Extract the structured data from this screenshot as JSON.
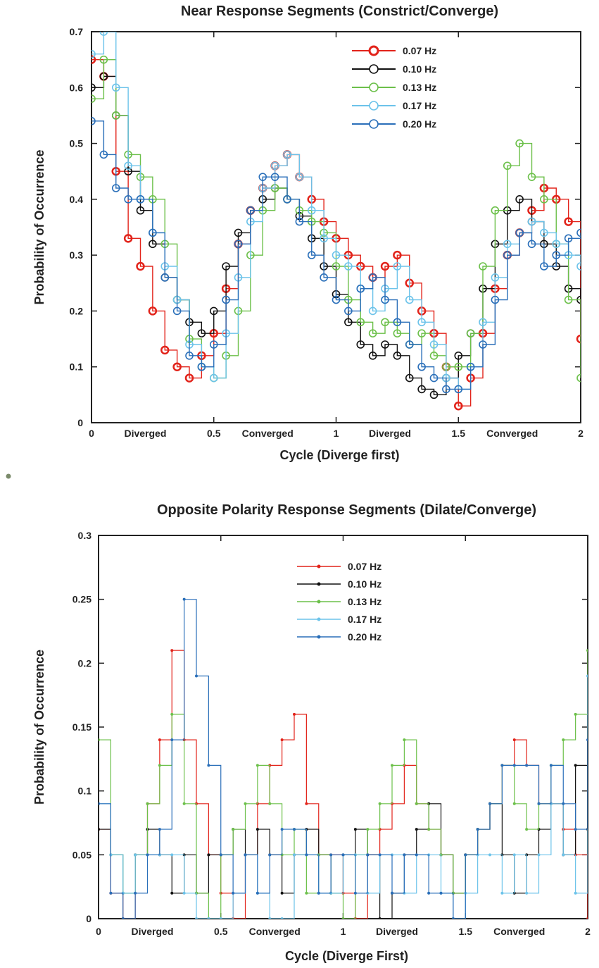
{
  "chart_data": [
    {
      "type": "scatter",
      "title": "Near Response Segments (Constrict/Converge)",
      "xlabel": "Cycle (Diverge first)",
      "ylabel": "Probability of Occurrence",
      "xlim": [
        0,
        2
      ],
      "ylim": [
        0,
        0.7
      ],
      "yticks": [
        "0",
        "0.1",
        "0.2",
        "0.3",
        "0.4",
        "0.5",
        "0.6",
        "0.7"
      ],
      "xticks": [
        {
          "v": 0,
          "label": "0"
        },
        {
          "v": 0.5,
          "label": "0.5"
        },
        {
          "v": 1,
          "label": "1"
        },
        {
          "v": 1.5,
          "label": "1.5"
        },
        {
          "v": 2,
          "label": "2"
        }
      ],
      "phase_labels": [
        {
          "v": 0.22,
          "label": "Diverged"
        },
        {
          "v": 0.72,
          "label": "Converged"
        },
        {
          "v": 1.22,
          "label": "Diverged"
        },
        {
          "v": 1.72,
          "label": "Converged"
        }
      ],
      "legend_position": "top-right",
      "marker": "open-circle",
      "series": [
        {
          "name": "0.07 Hz",
          "color": "#e2231a",
          "x": [
            0,
            0.05,
            0.1,
            0.15,
            0.2,
            0.25,
            0.3,
            0.35,
            0.4,
            0.45,
            0.5,
            0.55,
            0.6,
            0.65,
            0.7,
            0.75,
            0.8,
            0.85,
            0.9,
            0.95,
            1,
            1.05,
            1.1,
            1.15,
            1.2,
            1.25,
            1.3,
            1.35,
            1.4,
            1.45,
            1.5,
            1.55,
            1.6,
            1.65,
            1.7,
            1.75,
            1.8,
            1.85,
            1.9,
            1.95,
            2
          ],
          "y": [
            0.65,
            0.62,
            0.45,
            0.33,
            0.28,
            0.2,
            0.13,
            0.1,
            0.08,
            0.12,
            0.16,
            0.24,
            0.32,
            0.38,
            0.42,
            0.46,
            0.48,
            0.44,
            0.4,
            0.36,
            0.33,
            0.3,
            0.28,
            0.26,
            0.28,
            0.3,
            0.25,
            0.2,
            0.16,
            0.1,
            0.03,
            0.08,
            0.16,
            0.24,
            0.3,
            0.34,
            0.38,
            0.42,
            0.4,
            0.36,
            0.15
          ]
        },
        {
          "name": "0.10 Hz",
          "color": "#111111",
          "x": [
            0,
            0.05,
            0.1,
            0.15,
            0.2,
            0.25,
            0.3,
            0.35,
            0.4,
            0.45,
            0.5,
            0.55,
            0.6,
            0.65,
            0.7,
            0.75,
            0.8,
            0.85,
            0.9,
            0.95,
            1,
            1.05,
            1.1,
            1.15,
            1.2,
            1.25,
            1.3,
            1.35,
            1.4,
            1.45,
            1.5,
            1.55,
            1.6,
            1.65,
            1.7,
            1.75,
            1.8,
            1.85,
            1.9,
            1.95,
            2
          ],
          "y": [
            0.6,
            0.62,
            0.55,
            0.45,
            0.38,
            0.32,
            0.26,
            0.22,
            0.18,
            0.16,
            0.2,
            0.28,
            0.34,
            0.38,
            0.4,
            0.42,
            0.4,
            0.37,
            0.33,
            0.28,
            0.23,
            0.18,
            0.14,
            0.12,
            0.14,
            0.12,
            0.08,
            0.06,
            0.05,
            0.08,
            0.12,
            0.16,
            0.24,
            0.32,
            0.38,
            0.4,
            0.36,
            0.32,
            0.28,
            0.24,
            0.22
          ]
        },
        {
          "name": "0.13 Hz",
          "color": "#6cc04a",
          "x": [
            0,
            0.05,
            0.1,
            0.15,
            0.2,
            0.25,
            0.3,
            0.35,
            0.4,
            0.45,
            0.5,
            0.55,
            0.6,
            0.65,
            0.7,
            0.75,
            0.8,
            0.85,
            0.9,
            0.95,
            1,
            1.05,
            1.1,
            1.15,
            1.2,
            1.25,
            1.3,
            1.35,
            1.4,
            1.45,
            1.5,
            1.55,
            1.6,
            1.65,
            1.7,
            1.75,
            1.8,
            1.85,
            1.9,
            1.95,
            2
          ],
          "y": [
            0.58,
            0.65,
            0.55,
            0.48,
            0.44,
            0.4,
            0.32,
            0.22,
            0.15,
            0.1,
            0.08,
            0.12,
            0.2,
            0.3,
            0.38,
            0.42,
            0.4,
            0.38,
            0.36,
            0.34,
            0.28,
            0.22,
            0.18,
            0.16,
            0.18,
            0.16,
            0.14,
            0.16,
            0.12,
            0.1,
            0.1,
            0.16,
            0.28,
            0.38,
            0.46,
            0.5,
            0.44,
            0.4,
            0.32,
            0.22,
            0.08
          ]
        },
        {
          "name": "0.17 Hz",
          "color": "#6cc3ea",
          "x": [
            0,
            0.05,
            0.1,
            0.15,
            0.2,
            0.25,
            0.3,
            0.35,
            0.4,
            0.45,
            0.5,
            0.55,
            0.6,
            0.65,
            0.7,
            0.75,
            0.8,
            0.85,
            0.9,
            0.95,
            1,
            1.05,
            1.1,
            1.15,
            1.2,
            1.25,
            1.3,
            1.35,
            1.4,
            1.45,
            1.5,
            1.55,
            1.6,
            1.65,
            1.7,
            1.75,
            1.8,
            1.85,
            1.9,
            1.95,
            2
          ],
          "y": [
            0.66,
            0.7,
            0.6,
            0.46,
            0.4,
            0.34,
            0.28,
            0.22,
            0.14,
            0.1,
            0.08,
            0.16,
            0.26,
            0.36,
            0.42,
            0.46,
            0.48,
            0.44,
            0.38,
            0.33,
            0.3,
            0.28,
            0.24,
            0.2,
            0.24,
            0.28,
            0.22,
            0.18,
            0.14,
            0.08,
            0.06,
            0.1,
            0.18,
            0.26,
            0.32,
            0.34,
            0.36,
            0.34,
            0.32,
            0.3,
            0.28
          ]
        },
        {
          "name": "0.20 Hz",
          "color": "#2a6fb9",
          "x": [
            0,
            0.05,
            0.1,
            0.15,
            0.2,
            0.25,
            0.3,
            0.35,
            0.4,
            0.45,
            0.5,
            0.55,
            0.6,
            0.65,
            0.7,
            0.75,
            0.8,
            0.85,
            0.9,
            0.95,
            1,
            1.05,
            1.1,
            1.15,
            1.2,
            1.25,
            1.3,
            1.35,
            1.4,
            1.45,
            1.5,
            1.55,
            1.6,
            1.65,
            1.7,
            1.75,
            1.8,
            1.85,
            1.9,
            1.95,
            2
          ],
          "y": [
            0.54,
            0.48,
            0.42,
            0.4,
            0.4,
            0.34,
            0.26,
            0.2,
            0.12,
            0.1,
            0.14,
            0.22,
            0.32,
            0.38,
            0.44,
            0.44,
            0.4,
            0.36,
            0.3,
            0.26,
            0.22,
            0.2,
            0.24,
            0.26,
            0.22,
            0.18,
            0.14,
            0.1,
            0.08,
            0.06,
            0.06,
            0.1,
            0.14,
            0.22,
            0.3,
            0.34,
            0.32,
            0.28,
            0.3,
            0.33,
            0.34
          ]
        }
      ]
    },
    {
      "type": "line",
      "title": "Opposite Polarity Response Segments (Dilate/Converge)",
      "xlabel": "Cycle (Diverge First)",
      "ylabel": "Probability of Occurrence",
      "xlim": [
        0,
        2
      ],
      "ylim": [
        0,
        0.3
      ],
      "yticks": [
        "0",
        "0.05",
        "0.1",
        "0.15",
        "0.2",
        "0.25",
        "0.3"
      ],
      "xticks": [
        {
          "v": 0,
          "label": "0"
        },
        {
          "v": 0.5,
          "label": "0.5"
        },
        {
          "v": 1,
          "label": "1"
        },
        {
          "v": 1.5,
          "label": "1.5"
        },
        {
          "v": 2,
          "label": "2"
        }
      ],
      "phase_labels": [
        {
          "v": 0.22,
          "label": "Diverged"
        },
        {
          "v": 0.72,
          "label": "Converged"
        },
        {
          "v": 1.22,
          "label": "Diverged"
        },
        {
          "v": 1.72,
          "label": "Converged"
        }
      ],
      "legend_position": "top-left",
      "marker": "dot",
      "series": [
        {
          "name": "0.07 Hz",
          "color": "#e2231a",
          "x": [
            0,
            0.05,
            0.1,
            0.15,
            0.2,
            0.25,
            0.3,
            0.35,
            0.4,
            0.45,
            0.5,
            0.55,
            0.6,
            0.65,
            0.7,
            0.75,
            0.8,
            0.85,
            0.9,
            0.95,
            1,
            1.05,
            1.1,
            1.15,
            1.2,
            1.25,
            1.3,
            1.35,
            1.4,
            1.45,
            1.5,
            1.55,
            1.6,
            1.65,
            1.7,
            1.75,
            1.8,
            1.85,
            1.9,
            1.95,
            2
          ],
          "y": [
            0.07,
            0.02,
            0,
            0.05,
            0.09,
            0.14,
            0.21,
            0.14,
            0.09,
            0.05,
            0.02,
            0,
            0.05,
            0.09,
            0.12,
            0.14,
            0.16,
            0.09,
            0.05,
            0.05,
            0.02,
            0,
            0.05,
            0.07,
            0.09,
            0.12,
            0.09,
            0.07,
            0.05,
            0.02,
            0.05,
            0.07,
            0.09,
            0.12,
            0.14,
            0.12,
            0.09,
            0.09,
            0.07,
            0.05,
            0
          ]
        },
        {
          "name": "0.10 Hz",
          "color": "#111111",
          "x": [
            0,
            0.05,
            0.1,
            0.15,
            0.2,
            0.25,
            0.3,
            0.35,
            0.4,
            0.45,
            0.5,
            0.55,
            0.6,
            0.65,
            0.7,
            0.75,
            0.8,
            0.85,
            0.9,
            0.95,
            1,
            1.05,
            1.1,
            1.15,
            1.2,
            1.25,
            1.3,
            1.35,
            1.4,
            1.45,
            1.5,
            1.55,
            1.6,
            1.65,
            1.7,
            1.75,
            1.8,
            1.85,
            1.9,
            1.95,
            2
          ],
          "y": [
            0.07,
            0.05,
            0.02,
            0.05,
            0.07,
            0.05,
            0.02,
            0.05,
            0.02,
            0.05,
            0.05,
            0.07,
            0.05,
            0.07,
            0.05,
            0.02,
            0.05,
            0.07,
            0.05,
            0.02,
            0.05,
            0.07,
            0.05,
            0,
            0.02,
            0.05,
            0.07,
            0.09,
            0.05,
            0.02,
            0.05,
            0.07,
            0.09,
            0.05,
            0.02,
            0.05,
            0.07,
            0.09,
            0.05,
            0.12,
            0.07
          ]
        },
        {
          "name": "0.13 Hz",
          "color": "#6cc04a",
          "x": [
            0,
            0.05,
            0.1,
            0.15,
            0.2,
            0.25,
            0.3,
            0.35,
            0.4,
            0.45,
            0.5,
            0.55,
            0.6,
            0.65,
            0.7,
            0.75,
            0.8,
            0.85,
            0.9,
            0.95,
            1,
            1.05,
            1.1,
            1.15,
            1.2,
            1.25,
            1.3,
            1.35,
            1.4,
            1.45,
            1.5,
            1.55,
            1.6,
            1.65,
            1.7,
            1.75,
            1.8,
            1.85,
            1.9,
            1.95,
            2
          ],
          "y": [
            0.14,
            0.05,
            0.02,
            0.05,
            0.09,
            0.12,
            0.16,
            0.09,
            0.02,
            0,
            0.05,
            0.07,
            0.09,
            0.12,
            0.09,
            0.05,
            0.07,
            0.02,
            0.05,
            0.02,
            0,
            0.05,
            0.07,
            0.09,
            0.12,
            0.14,
            0.09,
            0.07,
            0.05,
            0.02,
            0.05,
            0.07,
            0.09,
            0.12,
            0.09,
            0.07,
            0.09,
            0.12,
            0.14,
            0.16,
            0.21
          ]
        },
        {
          "name": "0.17 Hz",
          "color": "#6cc3ea",
          "x": [
            0,
            0.05,
            0.1,
            0.15,
            0.2,
            0.25,
            0.3,
            0.35,
            0.4,
            0.45,
            0.5,
            0.55,
            0.6,
            0.65,
            0.7,
            0.75,
            0.8,
            0.85,
            0.9,
            0.95,
            1,
            1.05,
            1.1,
            1.15,
            1.2,
            1.25,
            1.3,
            1.35,
            1.4,
            1.45,
            1.5,
            1.55,
            1.6,
            1.65,
            1.7,
            1.75,
            1.8,
            1.85,
            1.9,
            1.95,
            2
          ],
          "y": [
            0.09,
            0.05,
            0.02,
            0.05,
            0.05,
            0.05,
            0.05,
            0.02,
            0,
            0,
            0,
            0.02,
            0.05,
            0.02,
            0,
            0,
            0.05,
            0.05,
            0.02,
            0.02,
            0.05,
            0.05,
            0.02,
            0.05,
            0.05,
            0.02,
            0.05,
            0.05,
            0.02,
            0,
            0.02,
            0.05,
            0.05,
            0.02,
            0.05,
            0.02,
            0.05,
            0.09,
            0.05,
            0.02,
            0.19
          ]
        },
        {
          "name": "0.20 Hz",
          "color": "#2a6fb9",
          "x": [
            0,
            0.05,
            0.1,
            0.15,
            0.2,
            0.25,
            0.3,
            0.35,
            0.4,
            0.45,
            0.5,
            0.55,
            0.6,
            0.65,
            0.7,
            0.75,
            0.8,
            0.85,
            0.9,
            0.95,
            1,
            1.05,
            1.1,
            1.15,
            1.2,
            1.25,
            1.3,
            1.35,
            1.4,
            1.45,
            1.5,
            1.55,
            1.6,
            1.65,
            1.7,
            1.75,
            1.8,
            1.85,
            1.9,
            1.95,
            2
          ],
          "y": [
            0.09,
            0.02,
            0,
            0.02,
            0.05,
            0.07,
            0.14,
            0.25,
            0.19,
            0.12,
            0.05,
            0.02,
            0.05,
            0.02,
            0.05,
            0.07,
            0.07,
            0.05,
            0.02,
            0.05,
            0.05,
            0.02,
            0.05,
            0.05,
            0.02,
            0.05,
            0.05,
            0.02,
            0.02,
            0,
            0.05,
            0.07,
            0.09,
            0.12,
            0.12,
            0.12,
            0.09,
            0.12,
            0.09,
            0.07,
            0.14
          ]
        }
      ]
    }
  ]
}
